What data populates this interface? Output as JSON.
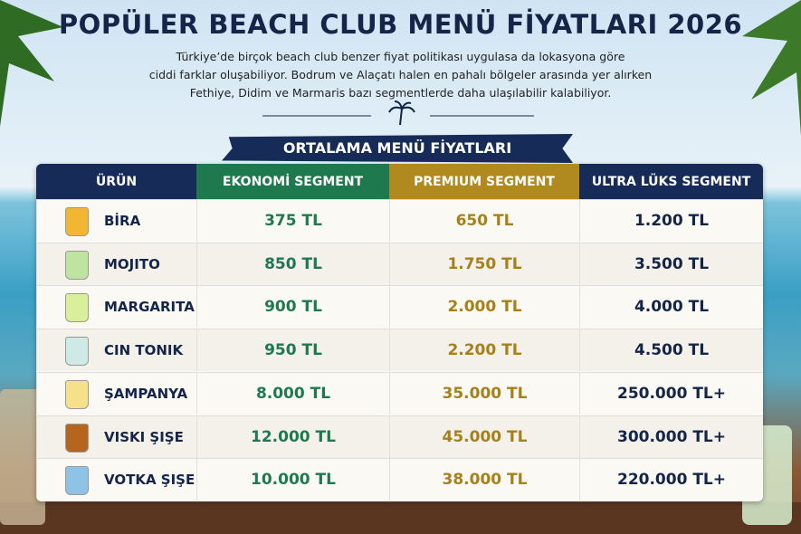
{
  "header": {
    "title": "POPÜLER BEACH CLUB MENÜ FİYATLARI 2026",
    "description": [
      "Türkiye’de birçok beach club benzer fiyat politikası uygulasa da lokasyona göre",
      "ciddi farklar oluşabiliyor. Bodrum ve Alaçatı halen en pahalı bölgeler arasında yer alırken",
      "Fethiye, Didim ve Marmaris bazı segmentlerde daha ulaşılabilir kalabiliyor."
    ]
  },
  "table": {
    "banner": "ORTALAMA MENÜ FİYATLARI",
    "columns": [
      "ÜRÜN",
      "EKONOMİ SEGMENT",
      "PREMIUM SEGMENT",
      "ULTRA LÜKS SEGMENT"
    ],
    "rows": [
      [
        "BİRA",
        "375 TL",
        "650 TL",
        "1.200 TL"
      ],
      [
        "MOJITO",
        "850 TL",
        "1.750 TL",
        "3.500 TL"
      ],
      [
        "MARGARITA",
        "900 TL",
        "2.000 TL",
        "4.000 TL"
      ],
      [
        "CIN TONIK",
        "950 TL",
        "2.200 TL",
        "4.500 TL"
      ],
      [
        "ŞAMPANYA",
        "8.000 TL",
        "35.000 TL",
        "250.000 TL+"
      ],
      [
        "VISKI ŞIŞE",
        "12.000 TL",
        "45.000 TL",
        "300.000 TL+"
      ],
      [
        "VOTKA ŞIŞE",
        "10.000 TL",
        "38.000 TL",
        "220.000 TL+"
      ]
    ]
  }
}
